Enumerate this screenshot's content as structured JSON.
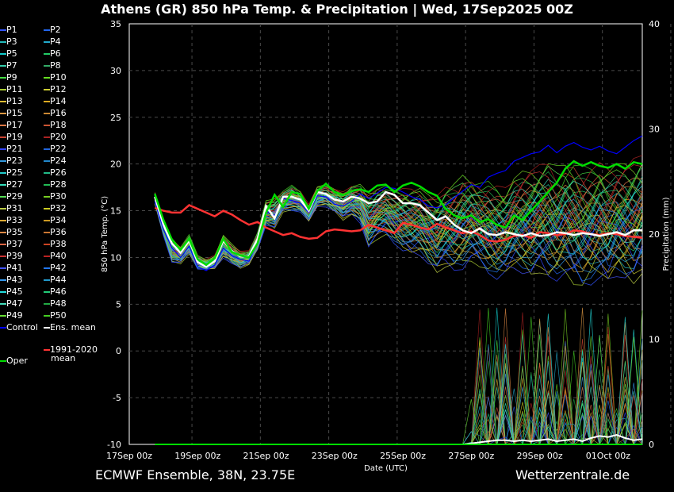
{
  "title": "Athens  (GR)  850 hPa Temp. & Precipitation | Wed, 17Sep2025 00Z",
  "footer": {
    "left": "ECMWF Ensemble, 38N, 23.75E",
    "right": "Wetterzentrale.de"
  },
  "colors": {
    "background": "#000000",
    "grid": "#555555",
    "control": "#0000ff",
    "ens_mean": "#ffffff",
    "climate_mean": "#ff3333",
    "oper": "#00dd00"
  },
  "legend": {
    "members": [
      "P1",
      "P2",
      "P3",
      "P4",
      "P5",
      "P6",
      "P7",
      "P8",
      "P9",
      "P10",
      "P11",
      "P12",
      "P13",
      "P14",
      "P15",
      "P16",
      "P17",
      "P18",
      "P19",
      "P20",
      "P21",
      "P22",
      "P23",
      "P24",
      "P25",
      "P26",
      "P27",
      "P28",
      "P29",
      "P30",
      "P31",
      "P32",
      "P33",
      "P34",
      "P35",
      "P36",
      "P37",
      "P38",
      "P39",
      "P40",
      "P41",
      "P42",
      "P43",
      "P44",
      "P45",
      "P46",
      "P47",
      "P48",
      "P49",
      "P50"
    ],
    "member_colors": [
      "#3355ff",
      "#2266ee",
      "#22bbbb",
      "#22aacc",
      "#11cccc",
      "#22cc66",
      "#33ccaa",
      "#33aa66",
      "#44dd44",
      "#66dd22",
      "#aacc33",
      "#cccc33",
      "#ddbb33",
      "#ddaa22",
      "#dd9944",
      "#cc8833",
      "#dd7744",
      "#cc5533",
      "#cc4433",
      "#aa2222",
      "#3344ff",
      "#2266dd",
      "#3399dd",
      "#2288cc",
      "#22cccc",
      "#22bb88",
      "#33ddbb",
      "#22bb55",
      "#55dd55",
      "#77cc22",
      "#bbcc44",
      "#cccc22",
      "#ddaa33",
      "#cc9922",
      "#dd8844",
      "#cc7733",
      "#dd6644",
      "#cc4422",
      "#cc3333",
      "#bb2222",
      "#4455ff",
      "#2277ee",
      "#3399ee",
      "#2299cc",
      "#22dddd",
      "#22cc77",
      "#44ddbb",
      "#22aa44",
      "#66dd33",
      "#44cc22"
    ],
    "control_label": "Control",
    "ens_mean_label": "Ens. mean",
    "climate_label_1": "1991-2020",
    "climate_label_2": "mean",
    "oper_label": "Oper"
  },
  "chart_data": {
    "type": "line",
    "title": "Athens  (GR)  850 hPa Temp. & Precipitation | Wed, 17Sep2025 00Z",
    "xlabel": "Date (UTC)",
    "ylabel": "850 hPa Temp. (°C)",
    "y2label": "Precipitation (mm)",
    "ylim": [
      -10,
      35
    ],
    "y2lim": [
      0,
      40
    ],
    "yticks": [
      -10,
      -5,
      0,
      5,
      10,
      15,
      20,
      25,
      30,
      35
    ],
    "y2ticks": [
      0,
      10,
      20,
      30,
      40
    ],
    "xlim_hours": [
      0,
      360
    ],
    "x_tick_hours": [
      0,
      48,
      96,
      144,
      192,
      240,
      288,
      336
    ],
    "x_tick_labels": [
      "17Sep 00z",
      "19Sep 00z",
      "21Sep 00z",
      "23Sep 00z",
      "25Sep 00z",
      "27Sep 00z",
      "29Sep 00z",
      "01Oct 00z"
    ],
    "grid": true,
    "x_hours": [
      18,
      24,
      30,
      36,
      42,
      48,
      54,
      60,
      66,
      72,
      78,
      84,
      90,
      96,
      102,
      108,
      114,
      120,
      126,
      132,
      138,
      144,
      150,
      156,
      162,
      168,
      174,
      180,
      186,
      192,
      198,
      204,
      210,
      216,
      222,
      228,
      234,
      240,
      246,
      252,
      258,
      264,
      270,
      276,
      282,
      288,
      294,
      300,
      306,
      312,
      318,
      324,
      330,
      336,
      342,
      348,
      354,
      360
    ],
    "ens_mean": [
      16.5,
      13.5,
      11.5,
      10.5,
      11.8,
      9.5,
      9.0,
      9.6,
      11.8,
      10.7,
      10.1,
      10.1,
      12.0,
      15.5,
      14.2,
      16.5,
      16.5,
      16.2,
      15.0,
      17.0,
      16.8,
      16.2,
      16.0,
      16.5,
      16.3,
      15.8,
      16.0,
      17.0,
      16.7,
      15.8,
      15.8,
      15.6,
      14.8,
      14.0,
      14.4,
      13.5,
      12.9,
      12.6,
      13.1,
      12.5,
      12.4,
      12.7,
      12.5,
      12.3,
      12.6,
      12.3,
      12.4,
      12.7,
      12.6,
      12.4,
      12.6,
      12.5,
      12.3,
      12.5,
      12.7,
      12.4,
      12.9,
      12.9
    ],
    "oper": [
      16.8,
      14.0,
      11.9,
      10.8,
      12.0,
      9.8,
      9.2,
      9.9,
      12.0,
      10.6,
      10.2,
      10.0,
      11.5,
      14.8,
      16.7,
      15.4,
      17.0,
      16.8,
      15.2,
      17.1,
      17.9,
      17.0,
      16.7,
      17.1,
      17.3,
      17.0,
      17.7,
      17.8,
      17.0,
      17.7,
      18.0,
      17.6,
      17.0,
      16.6,
      15.2,
      14.5,
      14.2,
      14.5,
      13.8,
      14.1,
      13.5,
      13.2,
      14.5,
      14.0,
      15.0,
      16.0,
      17.0,
      18.0,
      19.5,
      20.3,
      19.8,
      20.2,
      19.8,
      19.6,
      20.0,
      19.5,
      20.2,
      20.0
    ],
    "control": [
      16.0,
      13.0,
      11.0,
      10.0,
      11.2,
      9.0,
      8.6,
      9.2,
      11.0,
      10.2,
      9.8,
      9.6,
      11.8,
      15.0,
      14.5,
      16.3,
      16.1,
      15.8,
      14.8,
      16.6,
      16.5,
      15.7,
      15.5,
      16.0,
      16.8,
      16.3,
      16.9,
      17.5,
      17.4,
      17.0,
      16.5,
      16.2,
      15.5,
      15.3,
      15.6,
      16.4,
      17.1,
      17.8,
      17.5,
      18.6,
      19.0,
      19.3,
      20.3,
      20.7,
      21.1,
      21.3,
      22.0,
      21.2,
      21.9,
      22.3,
      21.8,
      21.5,
      21.9,
      21.4,
      21.1,
      21.8,
      22.5,
      23.0
    ],
    "climate_mean": [
      15.3,
      15.0,
      14.8,
      14.8,
      15.6,
      15.2,
      14.8,
      14.4,
      15.0,
      14.6,
      14.0,
      13.5,
      13.8,
      13.2,
      12.8,
      12.4,
      12.6,
      12.2,
      12.0,
      12.1,
      12.8,
      13.0,
      12.9,
      12.8,
      12.9,
      13.5,
      13.2,
      12.9,
      12.6,
      13.7,
      13.5,
      13.2,
      13.0,
      13.6,
      13.2,
      12.9,
      12.6,
      12.8,
      12.4,
      11.8,
      11.7,
      11.9,
      12.3,
      12.4,
      12.1,
      12.7,
      12.6,
      12.4,
      12.5,
      12.9,
      12.8,
      12.5,
      12.4,
      12.6,
      12.5,
      12.3,
      12.2,
      12.1
    ],
    "precip_mean_mm": [
      0,
      0,
      0,
      0,
      0,
      0,
      0,
      0,
      0,
      0,
      0,
      0,
      0,
      0,
      0,
      0,
      0,
      0,
      0,
      0,
      0,
      0,
      0,
      0,
      0,
      0,
      0,
      0,
      0,
      0,
      0,
      0,
      0,
      0,
      0,
      0,
      0,
      0.1,
      0.2,
      0.3,
      0.4,
      0.4,
      0.3,
      0.4,
      0.3,
      0.4,
      0.5,
      0.3,
      0.4,
      0.5,
      0.3,
      0.6,
      0.8,
      0.7,
      0.9,
      0.6,
      0.4,
      0.5
    ],
    "precip_oper_mm": [
      0,
      0,
      0,
      0,
      0,
      0,
      0,
      0,
      0,
      0,
      0,
      0,
      0,
      0,
      0,
      0,
      0,
      0,
      0,
      0,
      0,
      0,
      0,
      0,
      0,
      0,
      0,
      0,
      0,
      0,
      0,
      0,
      0,
      0,
      0,
      0,
      0,
      0,
      0,
      0,
      0,
      0,
      0,
      0,
      0,
      0,
      0,
      0,
      0,
      0,
      0,
      0,
      0,
      0,
      0,
      0,
      0,
      0
    ],
    "member_spread_note_hours": [
      18,
      360
    ],
    "member_lower_envelope": [
      15.5,
      12.0,
      9.0,
      9.0,
      10.0,
      8.5,
      8.5,
      8.5,
      9.5,
      9.0,
      8.5,
      9.0,
      10.5,
      13.0,
      12.5,
      14.5,
      14.5,
      14.5,
      13.5,
      15.0,
      15.0,
      14.5,
      13.5,
      14.0,
      13.0,
      10.0,
      11.0,
      11.5,
      10.5,
      9.5,
      9.0,
      9.0,
      8.0,
      7.0,
      7.5,
      7.0,
      7.0,
      8.0,
      7.5,
      6.5,
      6.0,
      6.5,
      7.0,
      6.5,
      6.0,
      6.5,
      5.5,
      5.5,
      6.0,
      5.0,
      4.5,
      5.0,
      5.5,
      5.0,
      6.0,
      5.5,
      5.0,
      6.0
    ],
    "member_upper_envelope": [
      17.2,
      14.5,
      12.5,
      11.5,
      12.8,
      10.5,
      10.0,
      10.5,
      12.8,
      11.8,
      11.0,
      11.0,
      13.0,
      16.5,
      17.0,
      17.5,
      18.2,
      17.5,
      16.0,
      18.0,
      18.2,
      17.8,
      17.5,
      18.2,
      18.5,
      18.0,
      18.5,
      18.5,
      18.3,
      18.5,
      18.6,
      18.6,
      18.0,
      18.0,
      19.0,
      19.5,
      20.5,
      20.0,
      19.5,
      19.8,
      19.5,
      19.0,
      20.3,
      21.0,
      21.5,
      21.8,
      22.6,
      21.8,
      22.3,
      22.5,
      22.0,
      21.9,
      22.2,
      21.8,
      22.0,
      22.3,
      22.8,
      23.2
    ]
  }
}
